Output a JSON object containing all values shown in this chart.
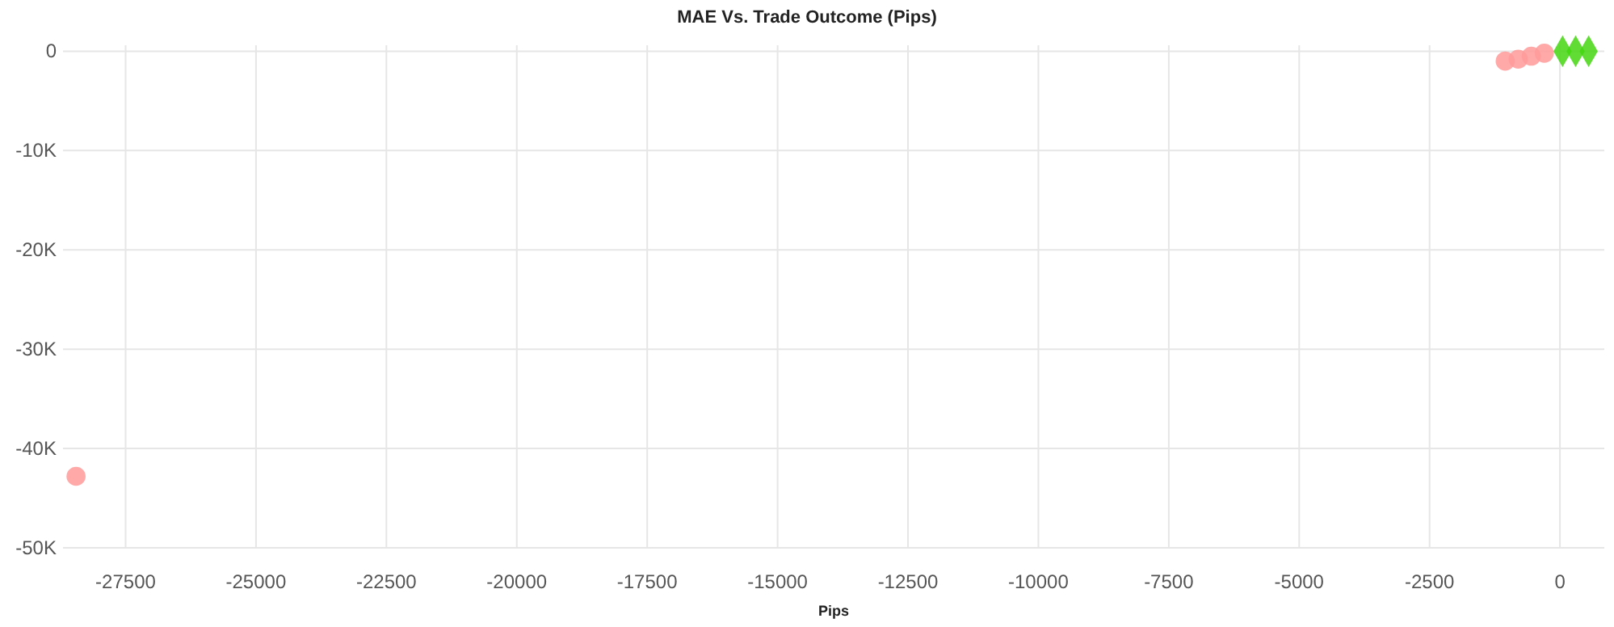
{
  "chart_data": {
    "type": "scatter",
    "title": "MAE Vs. Trade Outcome (Pips)",
    "xlabel": "Pips",
    "xlim": [
      -28700,
      850
    ],
    "ylim": [
      -50000,
      600
    ],
    "xticks": [
      -27500,
      -25000,
      -22500,
      -20000,
      -17500,
      -15000,
      -12500,
      -10000,
      -7500,
      -5000,
      -2500,
      0
    ],
    "yticks": [
      {
        "value": 0,
        "label": "0"
      },
      {
        "value": -10000,
        "label": "-10K"
      },
      {
        "value": -20000,
        "label": "-20K"
      },
      {
        "value": -30000,
        "label": "-30K"
      },
      {
        "value": -40000,
        "label": "-40K"
      },
      {
        "value": -50000,
        "label": "-50K"
      }
    ],
    "grid": true,
    "series": [
      {
        "color": "#ff9a9a",
        "marker": "circle",
        "x": [
          -28450,
          -1050,
          -800,
          -550,
          -300
        ],
        "values": [
          -42800,
          -1000,
          -800,
          -500,
          -200
        ]
      },
      {
        "color": "#44d610",
        "marker": "diamond",
        "x": [
          50,
          300,
          550
        ],
        "values": [
          0,
          0,
          0
        ]
      }
    ]
  }
}
